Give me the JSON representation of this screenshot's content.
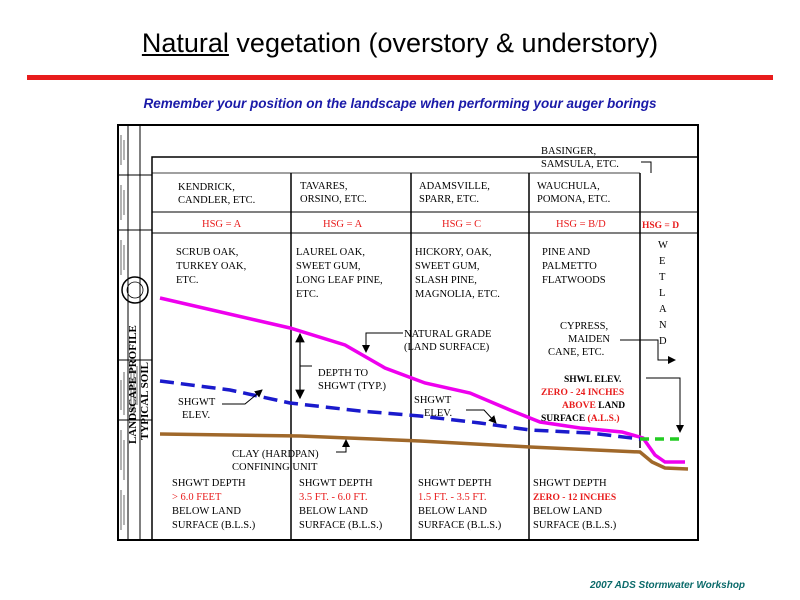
{
  "title": {
    "underlined": "Natural",
    "rest": " vegetation (overstory & understory)"
  },
  "subtitle": "Remember your position on the landscape when performing your auger borings",
  "footer": "2007 ADS Stormwater Workshop",
  "sidebar": {
    "title": "TYPICAL SOIL",
    "subtitle": "LANDSCAPE PROFILE"
  },
  "columns": [
    {
      "soils": [
        "KENDRICK,",
        "CANDLER, ETC."
      ],
      "hsg": "HSG = A",
      "vegetation": [
        "SCRUB OAK,",
        "TURKEY OAK,",
        "ETC."
      ],
      "depth_label": "SHGWT DEPTH",
      "depth_value": "> 6.0 FEET",
      "below": [
        "BELOW LAND",
        "SURFACE (B.L.S.)"
      ]
    },
    {
      "soils": [
        "TAVARES,",
        "ORSINO, ETC."
      ],
      "hsg": "HSG = A",
      "vegetation": [
        "LAUREL OAK,",
        "SWEET GUM,",
        "LONG LEAF PINE,",
        "ETC."
      ],
      "depth_label": "SHGWT DEPTH",
      "depth_value": "3.5 FT. - 6.0 FT.",
      "below": [
        "BELOW LAND",
        "SURFACE (B.L.S.)"
      ]
    },
    {
      "soils": [
        "ADAMSVILLE,",
        "SPARR, ETC."
      ],
      "hsg": "HSG = C",
      "vegetation": [
        "HICKORY, OAK,",
        "SWEET GUM,",
        "SLASH PINE,",
        "MAGNOLIA, ETC."
      ],
      "depth_label": "SHGWT DEPTH",
      "depth_value": "1.5 FT. - 3.5 FT.",
      "below": [
        "BELOW LAND",
        "SURFACE (B.L.S.)"
      ]
    },
    {
      "soils": [
        "WAUCHULA,",
        "POMONA, ETC."
      ],
      "hsg": "HSG = B/D",
      "vegetation": [
        "PINE AND",
        "PALMETTO",
        "FLATWOODS"
      ],
      "depth_label": "SHGWT DEPTH",
      "depth_value": "ZERO - 12 INCHES",
      "below": [
        "BELOW LAND",
        "SURFACE (B.L.S.)"
      ]
    }
  ],
  "wetland": {
    "soils": [
      "BASINGER,",
      "SAMSULA, ETC."
    ],
    "hsg": "HSG = D",
    "word": [
      "W",
      "E",
      "T",
      "L",
      "A",
      "N",
      "D"
    ],
    "veg": [
      "CYPRESS,",
      "MAIDEN",
      "CANE, ETC."
    ]
  },
  "annotations": {
    "natural_grade": [
      "NATURAL GRADE",
      "(LAND SURFACE)"
    ],
    "depth_to": [
      "DEPTH TO",
      "SHGWT (TYP.)"
    ],
    "shgwt_left": [
      "SHGWT",
      "ELEV."
    ],
    "shgwt_mid": [
      "SHGWT",
      "ELEV."
    ],
    "clay": [
      "CLAY (HARDPAN)",
      "CONFINING UNIT"
    ],
    "shwl": {
      "line1": "SHWL ELEV.",
      "line2": "ZERO - 24 INCHES",
      "line3a": "ABOVE",
      "line3b": " LAND",
      "line4a": "SURFACE ",
      "line4b": "(A.L.S.)"
    }
  },
  "colors": {
    "grade": "#ee00ee",
    "water_table": "#1a1acc",
    "clay": "#a0682a",
    "wetland_water": "#22cc22",
    "accent": "#e81c1c"
  }
}
